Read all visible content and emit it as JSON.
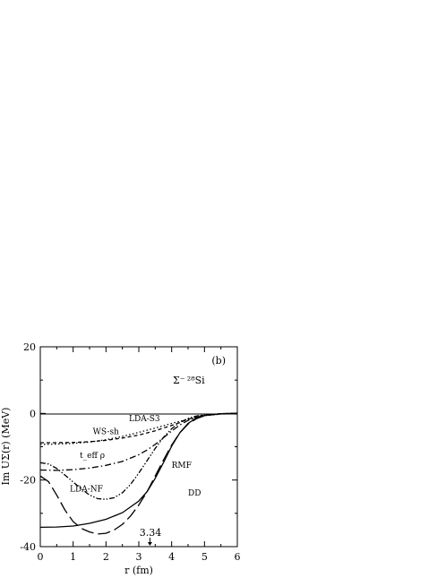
{
  "chart_data": {
    "type": "line",
    "panel_label": "(b)",
    "nucleus_label": "Σ⁻ ²⁸Si",
    "xlabel": "r  (fm)",
    "ylabel": "Im UΣ(r)  (MeV)",
    "xlim": [
      0,
      6
    ],
    "ylim": [
      -40,
      20
    ],
    "x_ticks": [
      0,
      1,
      2,
      3,
      4,
      5,
      6
    ],
    "y_ticks": [
      -40,
      -20,
      0,
      20
    ],
    "arrow_annotation": {
      "x": 3.34,
      "label": "3.34"
    },
    "series": [
      {
        "name": "DD",
        "style": "solid",
        "label_pos": [
          4.5,
          -24.7
        ],
        "points": [
          [
            0,
            -34.2
          ],
          [
            0.5,
            -34.1
          ],
          [
            1,
            -33.8
          ],
          [
            1.5,
            -33.0
          ],
          [
            2,
            -31.8
          ],
          [
            2.5,
            -29.8
          ],
          [
            3,
            -26.3
          ],
          [
            3.25,
            -23.5
          ],
          [
            3.5,
            -19.5
          ],
          [
            3.75,
            -14.8
          ],
          [
            4,
            -9.8
          ],
          [
            4.25,
            -5.8
          ],
          [
            4.5,
            -3.0
          ],
          [
            4.75,
            -1.4
          ],
          [
            5,
            -0.6
          ],
          [
            5.5,
            -0.1
          ],
          [
            6,
            0
          ]
        ]
      },
      {
        "name": "RMF",
        "style": "long-dash",
        "label_pos": [
          4.0,
          -16.3
        ],
        "points": [
          [
            0,
            -18.8
          ],
          [
            0.25,
            -20.5
          ],
          [
            0.5,
            -24.5
          ],
          [
            0.75,
            -29.0
          ],
          [
            1,
            -32.5
          ],
          [
            1.25,
            -34.5
          ],
          [
            1.5,
            -35.6
          ],
          [
            1.75,
            -36.2
          ],
          [
            2,
            -36.0
          ],
          [
            2.25,
            -35.0
          ],
          [
            2.5,
            -33.3
          ],
          [
            2.75,
            -30.8
          ],
          [
            3,
            -27.5
          ],
          [
            3.25,
            -23.5
          ],
          [
            3.5,
            -18.8
          ],
          [
            3.75,
            -14.0
          ],
          [
            4,
            -9.5
          ],
          [
            4.25,
            -5.8
          ],
          [
            4.5,
            -3.2
          ],
          [
            4.75,
            -1.6
          ],
          [
            5,
            -0.7
          ],
          [
            5.5,
            -0.1
          ],
          [
            6,
            0
          ]
        ]
      },
      {
        "name": "LDA-NF",
        "style": "dash-dot-dot",
        "label_pos": [
          0.9,
          -23.5
        ],
        "points": [
          [
            0,
            -14.8
          ],
          [
            0.25,
            -15.2
          ],
          [
            0.5,
            -16.5
          ],
          [
            0.75,
            -18.5
          ],
          [
            1,
            -20.6
          ],
          [
            1.25,
            -22.7
          ],
          [
            1.5,
            -24.5
          ],
          [
            1.75,
            -25.6
          ],
          [
            2,
            -25.8
          ],
          [
            2.25,
            -25.3
          ],
          [
            2.5,
            -23.8
          ],
          [
            2.75,
            -21.3
          ],
          [
            3,
            -17.9
          ],
          [
            3.25,
            -14.2
          ],
          [
            3.5,
            -10.5
          ],
          [
            3.75,
            -7.2
          ],
          [
            4,
            -4.6
          ],
          [
            4.25,
            -2.7
          ],
          [
            4.5,
            -1.5
          ],
          [
            4.75,
            -0.8
          ],
          [
            5,
            -0.4
          ],
          [
            5.5,
            -0.1
          ],
          [
            6,
            0
          ]
        ]
      },
      {
        "name": "t_eff ρ",
        "style": "dash-dot",
        "label_pos": [
          1.2,
          -13.3
        ],
        "points": [
          [
            0,
            -17.0
          ],
          [
            0.5,
            -17.1
          ],
          [
            1,
            -16.9
          ],
          [
            1.5,
            -16.4
          ],
          [
            2,
            -15.6
          ],
          [
            2.5,
            -14.4
          ],
          [
            3,
            -12.4
          ],
          [
            3.25,
            -11.0
          ],
          [
            3.5,
            -9.3
          ],
          [
            3.75,
            -7.3
          ],
          [
            4,
            -5.3
          ],
          [
            4.25,
            -3.5
          ],
          [
            4.5,
            -2.1
          ],
          [
            4.75,
            -1.2
          ],
          [
            5,
            -0.6
          ],
          [
            5.5,
            -0.1
          ],
          [
            6,
            0
          ]
        ]
      },
      {
        "name": "WS-sh",
        "style": "dashed",
        "label_pos": [
          1.6,
          -6.3
        ],
        "points": [
          [
            0,
            -8.8
          ],
          [
            0.5,
            -8.8
          ],
          [
            1,
            -8.7
          ],
          [
            1.5,
            -8.5
          ],
          [
            2,
            -8.1
          ],
          [
            2.5,
            -7.4
          ],
          [
            3,
            -6.5
          ],
          [
            3.5,
            -5.2
          ],
          [
            4,
            -3.6
          ],
          [
            4.25,
            -2.7
          ],
          [
            4.5,
            -1.8
          ],
          [
            4.75,
            -1.0
          ],
          [
            5,
            -0.5
          ],
          [
            5.5,
            -0.1
          ],
          [
            6,
            0
          ]
        ]
      },
      {
        "name": "LDA-S3",
        "style": "dotted",
        "label_pos": [
          2.7,
          -2.3
        ],
        "points": [
          [
            0,
            -9.3
          ],
          [
            0.5,
            -9.2
          ],
          [
            1,
            -9.0
          ],
          [
            1.5,
            -8.6
          ],
          [
            2,
            -7.9
          ],
          [
            2.5,
            -6.9
          ],
          [
            3,
            -5.7
          ],
          [
            3.5,
            -4.4
          ],
          [
            4,
            -3.0
          ],
          [
            4.5,
            -1.7
          ],
          [
            5,
            -0.7
          ],
          [
            5.5,
            -0.2
          ],
          [
            6,
            0
          ]
        ]
      }
    ]
  }
}
